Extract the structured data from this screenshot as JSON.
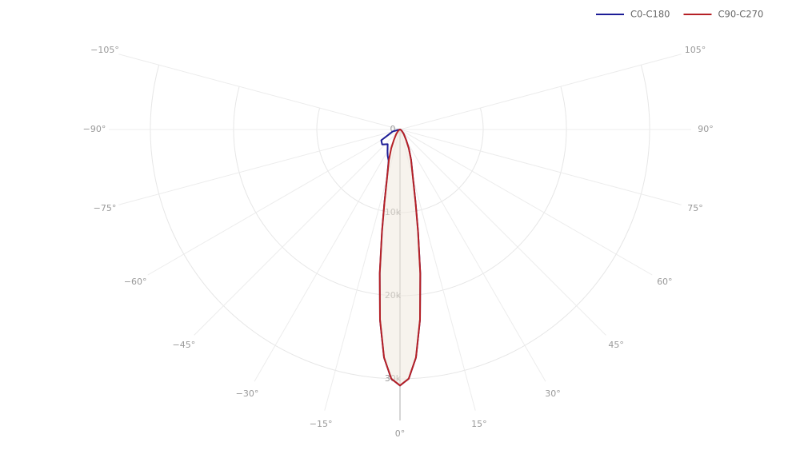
{
  "chart_data": {
    "type": "polar",
    "x": [
      -90,
      -75,
      -60,
      -50,
      -40,
      -30,
      -25,
      -20,
      -15,
      -12,
      -10,
      -8,
      -6,
      -4,
      -2,
      0,
      2,
      4,
      6,
      8,
      10,
      12,
      15,
      20,
      25,
      30,
      40,
      50,
      60,
      75,
      90
    ],
    "series": [
      {
        "name": "C0-C180",
        "color": "#1c1c96",
        "values": [
          0,
          900,
          2600,
          2800,
          2300,
          3000,
          3500,
          4000,
          6000,
          9000,
          12400,
          17400,
          23000,
          27500,
          30000,
          30800,
          30000,
          27500,
          23000,
          17500,
          12500,
          9000,
          6000,
          3900,
          2500,
          1500,
          700,
          300,
          150,
          50,
          0
        ]
      },
      {
        "name": "C90-C270",
        "color": "#b52025",
        "values": [
          0,
          50,
          150,
          300,
          700,
          1500,
          2500,
          3900,
          6000,
          9000,
          12500,
          17500,
          23000,
          27500,
          30000,
          30800,
          30000,
          27500,
          23000,
          17500,
          12500,
          9000,
          6000,
          3900,
          2500,
          1500,
          700,
          300,
          150,
          50,
          0
        ]
      }
    ],
    "xticks": [
      {
        "value": -105,
        "label": "−105°"
      },
      {
        "value": -90,
        "label": "−90°"
      },
      {
        "value": -75,
        "label": "−75°"
      },
      {
        "value": -60,
        "label": "−60°"
      },
      {
        "value": -45,
        "label": "−45°"
      },
      {
        "value": -30,
        "label": "−30°"
      },
      {
        "value": -15,
        "label": "−15°"
      },
      {
        "value": 0,
        "label": "0°"
      },
      {
        "value": 15,
        "label": "15°"
      },
      {
        "value": 30,
        "label": "30°"
      },
      {
        "value": 45,
        "label": "45°"
      },
      {
        "value": 60,
        "label": "60°"
      },
      {
        "value": 75,
        "label": "75°"
      },
      {
        "value": 90,
        "label": "90°"
      },
      {
        "value": 105,
        "label": "105°"
      }
    ],
    "ylim": [
      0,
      35000
    ],
    "yticks": [
      0,
      {
        "value": 10000,
        "label": "10k"
      },
      {
        "value": 20000,
        "label": "20k"
      },
      {
        "value": 30000,
        "label": "30k"
      }
    ],
    "grid": true,
    "legend": "top-right"
  }
}
